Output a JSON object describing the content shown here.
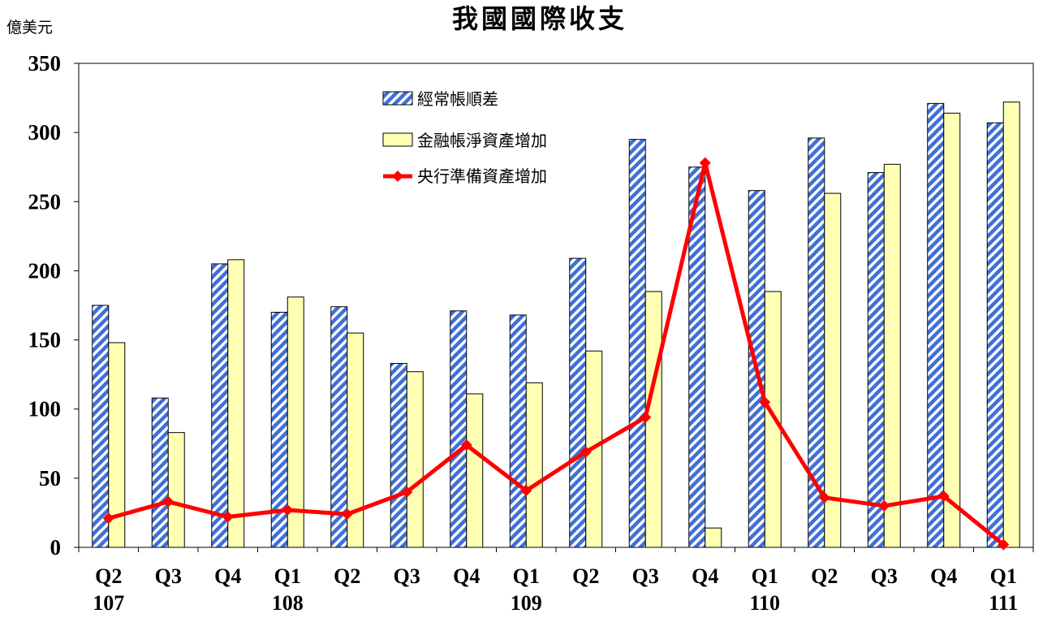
{
  "chart_data": {
    "type": "bar",
    "title": "我國國際收支",
    "ylabel": "億美元",
    "ylim": [
      0,
      350
    ],
    "yticks": [
      0,
      50,
      100,
      150,
      200,
      250,
      300,
      350
    ],
    "grid": false,
    "legend_position": "top-center",
    "categories": [
      "Q2",
      "Q3",
      "Q4",
      "Q1",
      "Q2",
      "Q3",
      "Q4",
      "Q1",
      "Q2",
      "Q3",
      "Q4",
      "Q1",
      "Q2",
      "Q3",
      "Q4",
      "Q1"
    ],
    "year_labels": [
      {
        "index": 0,
        "text": "107"
      },
      {
        "index": 3,
        "text": "108"
      },
      {
        "index": 7,
        "text": "109"
      },
      {
        "index": 11,
        "text": "110"
      },
      {
        "index": 15,
        "text": "111"
      }
    ],
    "series": [
      {
        "name": "經常帳順差",
        "kind": "bar",
        "pattern": "diagonal-hatch",
        "color": "#3f6fd8",
        "values": [
          175,
          108,
          205,
          170,
          174,
          133,
          171,
          168,
          209,
          295,
          275,
          258,
          296,
          271,
          321,
          307
        ]
      },
      {
        "name": "金融帳淨資產增加",
        "kind": "bar",
        "color": "#ffffb3",
        "values": [
          148,
          83,
          208,
          181,
          155,
          127,
          111,
          119,
          142,
          185,
          14,
          185,
          256,
          277,
          314,
          322
        ]
      },
      {
        "name": "央行準備資產增加",
        "kind": "line",
        "marker": "diamond",
        "color": "#ff0000",
        "values": [
          21,
          33,
          22,
          27,
          24,
          40,
          74,
          41,
          69,
          94,
          278,
          105,
          36,
          30,
          37,
          2
        ]
      }
    ]
  }
}
